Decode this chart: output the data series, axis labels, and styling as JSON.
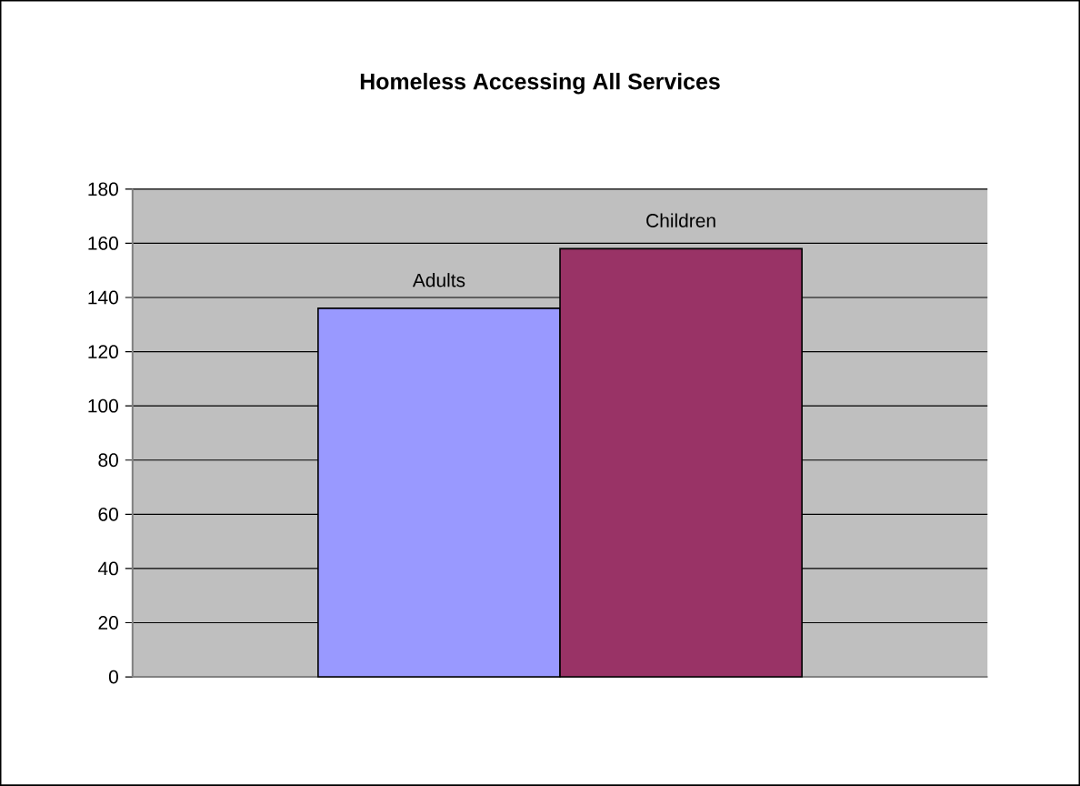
{
  "chart_data": {
    "type": "bar",
    "title": "Homeless Accessing All Services",
    "categories": [
      null
    ],
    "series": [
      {
        "name": "Adults",
        "color": "#9999ff",
        "values": [
          136
        ]
      },
      {
        "name": "Children",
        "color": "#993366",
        "values": [
          158
        ]
      }
    ],
    "ylim": [
      0,
      180
    ],
    "yticks": [
      0,
      20,
      40,
      60,
      80,
      100,
      120,
      140,
      160,
      180
    ],
    "grid": "y"
  }
}
